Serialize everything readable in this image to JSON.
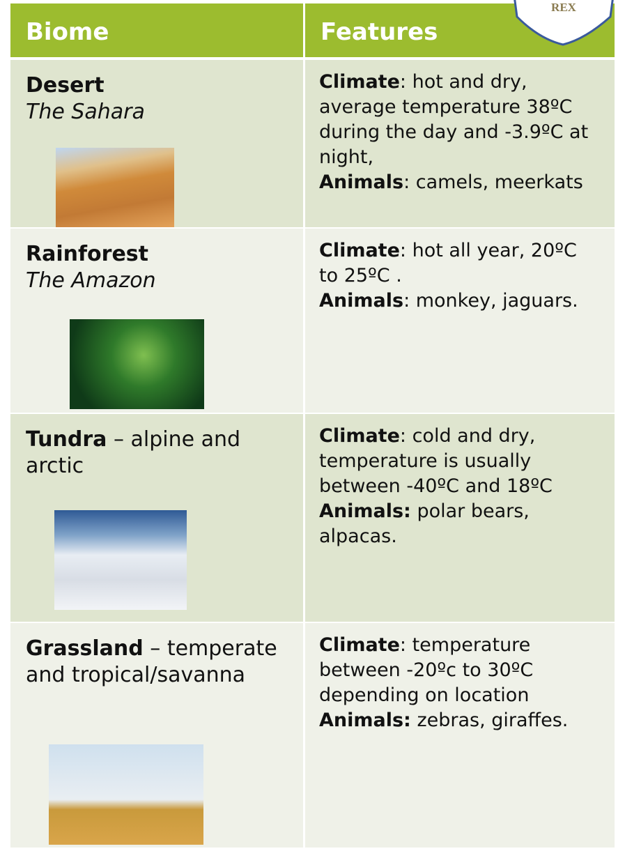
{
  "crest": {
    "text": "REX"
  },
  "table": {
    "header": [
      "Biome",
      "Features"
    ],
    "rows": [
      {
        "name": "Desert",
        "subtitle": "The Sahara",
        "climate_label": "Climate",
        "climate": ": hot and dry, average temperature 38ºC during the day and -3.9ºC at night,",
        "animals_label": "Animals",
        "animals": ": camels, meerkats"
      },
      {
        "name": "Rainforest",
        "subtitle": "The Amazon",
        "climate_label": "Climate",
        "climate": ": hot all year, 20ºC to 25ºC .",
        "animals_label": "Animals",
        "animals": ": monkey, jaguars."
      },
      {
        "name": "Tundra",
        "suffix": " – alpine and arctic",
        "climate_label": "Climate",
        "climate": ": cold and dry, temperature is usually between -40ºC and 18ºC",
        "animals_label": "Animals:",
        "animals": " polar bears, alpacas."
      },
      {
        "name": "Grassland",
        "suffix": " – temperate and tropical/savanna",
        "climate_label": "Climate",
        "climate": ": temperature between -20ºc to 30ºC depending on location",
        "animals_label": "Animals:",
        "animals": " zebras, giraffes."
      }
    ]
  }
}
